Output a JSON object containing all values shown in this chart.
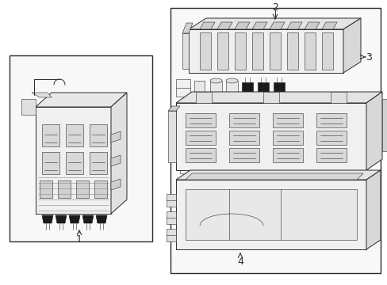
{
  "bg_color": "#ffffff",
  "lc": "#2a2a2a",
  "lc_dark": "#111111",
  "lc_mid": "#555555",
  "fig_width": 4.89,
  "fig_height": 3.6,
  "dpi": 100,
  "labels": [
    "1",
    "2",
    "3",
    "4"
  ],
  "font_size": 9,
  "arrow_color": "#333333"
}
